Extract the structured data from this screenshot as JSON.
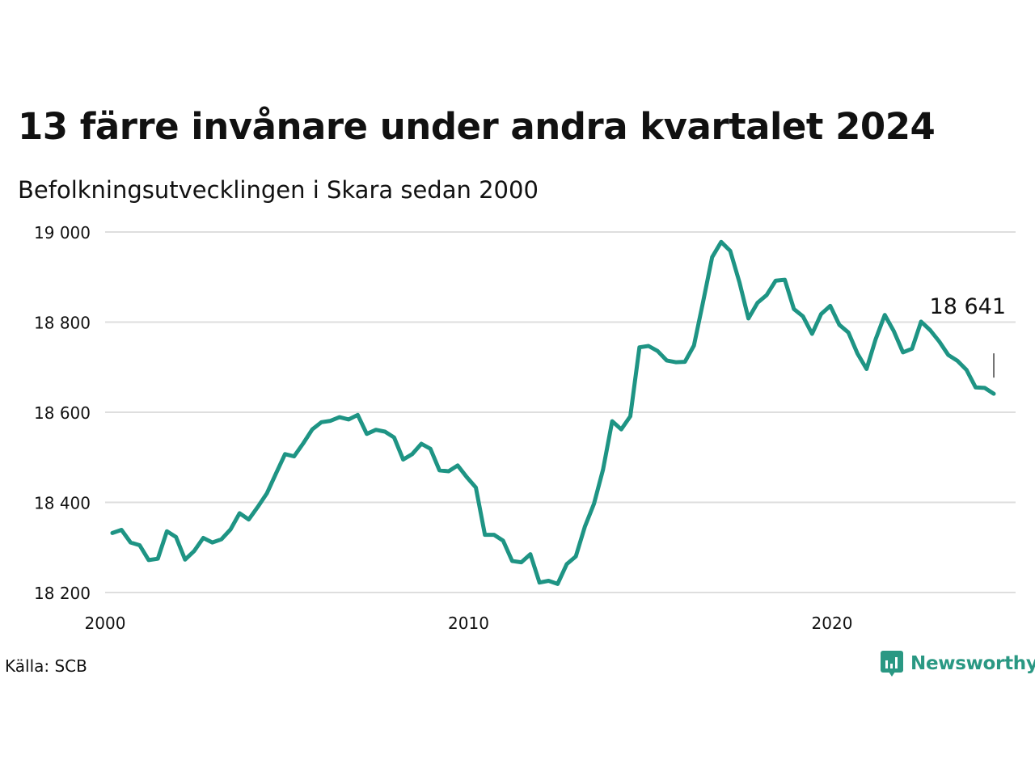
{
  "title": "13 färre invånare under andra kvartalet 2024",
  "subtitle": "Befolkningsutvecklingen i Skara sedan 2000",
  "source": "Källa: SCB",
  "brand": {
    "name": "Newsworthy"
  },
  "colors": {
    "line": "#1e9484",
    "grid": "#dedede",
    "text": "#111111",
    "brand": "#2a9883"
  },
  "chart_data": {
    "type": "line",
    "x_unit": "quarter",
    "x_start": "2000 Q1",
    "x_end": "2024 Q2",
    "ylim": [
      18200,
      19000
    ],
    "y_ticks": [
      {
        "value": 18200,
        "label": "18 200"
      },
      {
        "value": 18400,
        "label": "18 400"
      },
      {
        "value": 18600,
        "label": "18 600"
      },
      {
        "value": 18800,
        "label": "18 800"
      },
      {
        "value": 19000,
        "label": "19 000"
      }
    ],
    "x_ticks": [
      {
        "value": 2000,
        "label": "2000"
      },
      {
        "value": 2010,
        "label": "2010"
      },
      {
        "value": 2020,
        "label": "2020"
      }
    ],
    "grid": "horizontal",
    "last_value_label": "18 641",
    "values": [
      18332,
      18339,
      18311,
      18305,
      18272,
      18275,
      18336,
      18323,
      18273,
      18292,
      18321,
      18311,
      18318,
      18340,
      18376,
      18362,
      18390,
      18420,
      18464,
      18507,
      18502,
      18531,
      18562,
      18578,
      18581,
      18589,
      18584,
      18594,
      18552,
      18561,
      18557,
      18544,
      18495,
      18507,
      18530,
      18519,
      18471,
      18469,
      18482,
      18456,
      18433,
      18328,
      18328,
      18315,
      18270,
      18267,
      18285,
      18222,
      18226,
      18219,
      18263,
      18280,
      18346,
      18397,
      18473,
      18580,
      18562,
      18591,
      18744,
      18747,
      18736,
      18715,
      18711,
      18712,
      18748,
      18844,
      18944,
      18978,
      18958,
      18889,
      18808,
      18843,
      18860,
      18892,
      18894,
      18829,
      18813,
      18774,
      18818,
      18836,
      18794,
      18777,
      18730,
      18696,
      18762,
      18816,
      18780,
      18733,
      18741,
      18801,
      18782,
      18757,
      18727,
      18714,
      18694,
      18655,
      18654,
      18641
    ]
  }
}
